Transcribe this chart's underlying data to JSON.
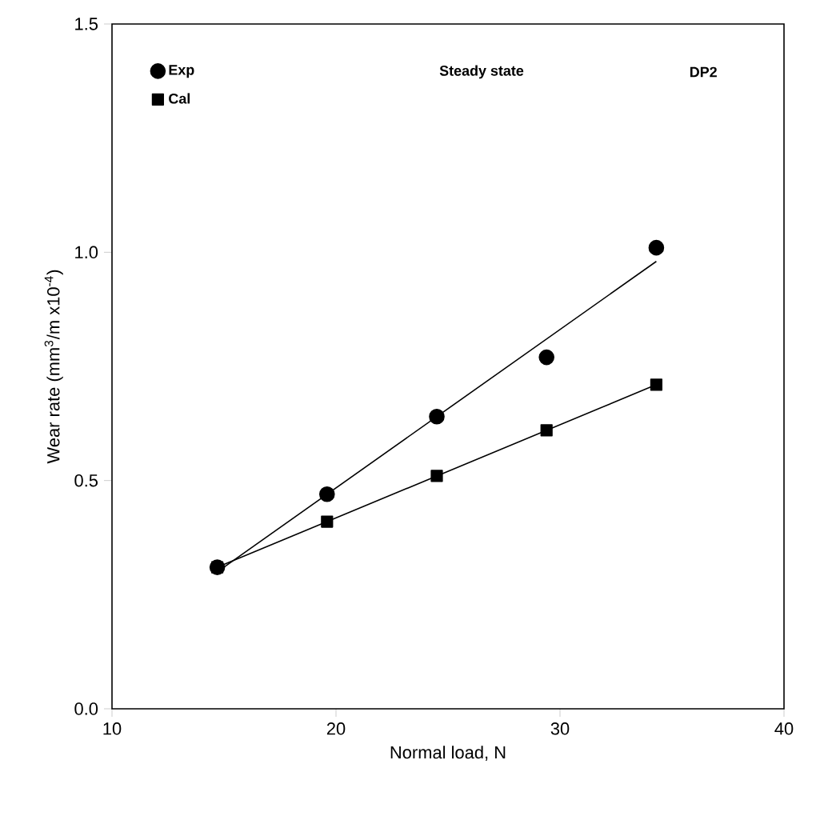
{
  "chart_data": {
    "type": "line",
    "xlabel": "Normal load, N",
    "ylabel": "Wear rate (mm$^{3}$/m x10$^{-4}$)",
    "xlim": [
      10,
      40
    ],
    "xticks": [
      10,
      20,
      30,
      40
    ],
    "ylim": [
      0,
      1.5
    ],
    "yticks": [
      {
        "value": 0,
        "label": "0.0"
      },
      {
        "value": 0.5,
        "label": "0.5"
      },
      {
        "value": 1,
        "label": "1.0"
      },
      {
        "value": 1.5,
        "label": "1.5"
      }
    ],
    "grid": false,
    "legend": "top left",
    "annotations": [
      "Steady state",
      "DP2"
    ],
    "series": [
      {
        "name": "Cal",
        "marker": "square",
        "color": "#000000",
        "x": [
          14.7,
          19.6,
          24.5,
          29.4,
          34.3
        ],
        "values": [
          0.31,
          0.41,
          0.51,
          0.61,
          0.71
        ]
      },
      {
        "marker": "none",
        "color": "#000000",
        "x": [
          14.7,
          34.3
        ],
        "values": [
          0.3,
          0.98
        ]
      },
      {
        "name": "Exp",
        "type": "scatter",
        "marker": "circle",
        "color": "#000000",
        "x": [
          14.7,
          19.6,
          24.5,
          29.4,
          34.3
        ],
        "values": [
          0.31,
          0.47,
          0.64,
          0.77,
          1.01
        ]
      }
    ]
  }
}
